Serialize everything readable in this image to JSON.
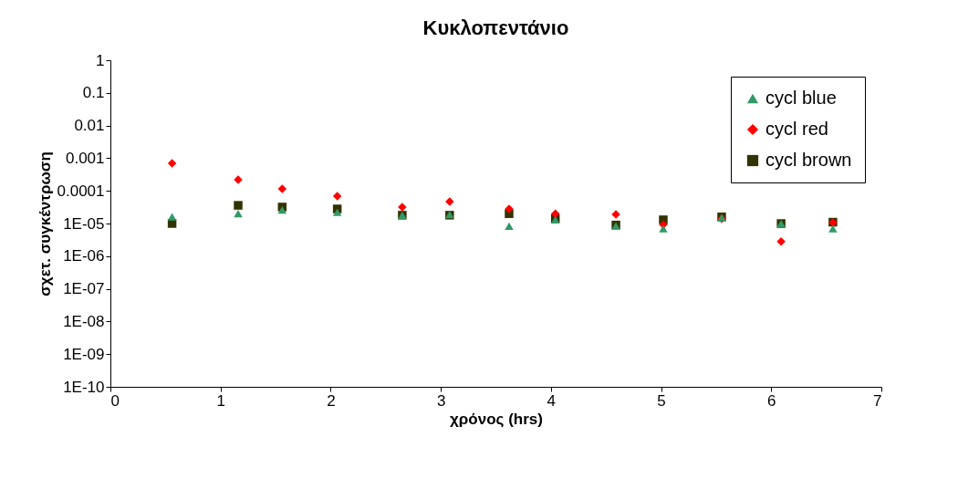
{
  "chart_data": {
    "type": "scatter",
    "title": "Κυκλοπεντάνιο",
    "xlabel": "χρόνος (hrs)",
    "ylabel": "σχετ. συγκέντρωση",
    "x": [
      0.56,
      1.16,
      1.56,
      2.06,
      2.65,
      3.08,
      3.62,
      4.04,
      4.59,
      5.02,
      5.55,
      6.09,
      6.56
    ],
    "series": [
      {
        "name": "cycl blue",
        "color": "#339966",
        "marker": "triangle",
        "values": [
          1.6e-05,
          2e-05,
          2.6e-05,
          2.2e-05,
          1.8e-05,
          1.9e-05,
          8.3e-06,
          1.3e-05,
          8.5e-06,
          7e-06,
          1.5e-05,
          1e-05,
          7e-06
        ]
      },
      {
        "name": "cycl red",
        "color": "#ff0000",
        "marker": "diamond",
        "values": [
          0.0007,
          0.00022,
          0.000115,
          6.9e-05,
          3.2e-05,
          4.7e-05,
          2.8e-05,
          2e-05,
          1.9e-05,
          9.3e-06,
          1.4e-05,
          2.8e-06,
          1.07e-05
        ]
      },
      {
        "name": "cycl brown",
        "color": "#333300",
        "marker": "square",
        "values": [
          1e-05,
          3.6e-05,
          3.2e-05,
          2.8e-05,
          1.8e-05,
          1.8e-05,
          2e-05,
          1.4e-05,
          9e-06,
          1.3e-05,
          1.6e-05,
          1e-05,
          1.1e-05
        ]
      }
    ],
    "log": "y",
    "grid": false,
    "legend": "top right",
    "xlim": [
      0,
      7
    ],
    "xticks": [
      0,
      1,
      2,
      3,
      4,
      5,
      6,
      7
    ],
    "ylim": [
      1e-10,
      1
    ],
    "yticks": [
      {
        "value": 1e-10,
        "label": "1E-10"
      },
      {
        "value": 1e-09,
        "label": "1E-09"
      },
      {
        "value": 1e-08,
        "label": "1E-08"
      },
      {
        "value": 1e-07,
        "label": "1E-07"
      },
      {
        "value": 1e-06,
        "label": "1E-06"
      },
      {
        "value": 1e-05,
        "label": "1E-05"
      },
      0.0001,
      0.001,
      0.01,
      0.1,
      1
    ]
  }
}
